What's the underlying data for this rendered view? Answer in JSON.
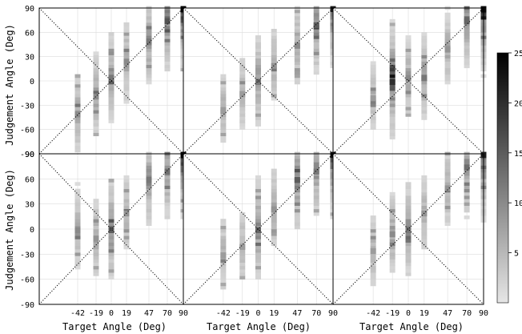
{
  "chart_data": {
    "type": "heatmap",
    "layout": {
      "rows": 2,
      "cols": 3
    },
    "xlabel": "Target Angle (Deg)",
    "ylabel": "Judgement Angle (Deg)",
    "x_ticks": [
      -42,
      -19,
      0,
      19,
      47,
      70,
      90
    ],
    "y_ticks": [
      90,
      60,
      30,
      0,
      -30,
      -60,
      -90
    ],
    "xlim": [
      -90,
      90
    ],
    "ylim": [
      -90,
      90
    ],
    "grid": true,
    "colorbar": {
      "ticks": [
        25,
        20,
        15,
        10,
        5
      ],
      "range": [
        0,
        25
      ],
      "colormap": "grayscale"
    },
    "reference_lines": [
      "y = x",
      "y = -x"
    ],
    "panels": [
      {
        "name": "panel-1",
        "peaks": [
          [
            90,
            90,
            25
          ],
          [
            70,
            75,
            16
          ],
          [
            47,
            50,
            12
          ],
          [
            19,
            25,
            10
          ],
          [
            0,
            5,
            12
          ],
          [
            -19,
            -18,
            10
          ],
          [
            -42,
            -40,
            10
          ]
        ]
      },
      {
        "name": "panel-2",
        "peaks": [
          [
            90,
            90,
            22
          ],
          [
            70,
            70,
            15
          ],
          [
            47,
            45,
            10
          ],
          [
            19,
            20,
            9
          ],
          [
            0,
            0,
            12
          ],
          [
            -19,
            -15,
            8
          ],
          [
            -42,
            -35,
            8
          ]
        ]
      },
      {
        "name": "panel-3",
        "peaks": [
          [
            90,
            90,
            24
          ],
          [
            70,
            75,
            14
          ],
          [
            47,
            40,
            9
          ],
          [
            19,
            5,
            12
          ],
          [
            0,
            5,
            10
          ],
          [
            -19,
            0,
            20
          ],
          [
            -42,
            -20,
            8
          ]
        ]
      },
      {
        "name": "panel-4",
        "peaks": [
          [
            90,
            90,
            25
          ],
          [
            70,
            70,
            13
          ],
          [
            47,
            60,
            12
          ],
          [
            19,
            20,
            9
          ],
          [
            0,
            0,
            15
          ],
          [
            -19,
            -10,
            9
          ],
          [
            -42,
            0,
            10
          ]
        ]
      },
      {
        "name": "panel-5",
        "peaks": [
          [
            90,
            90,
            24
          ],
          [
            70,
            70,
            12
          ],
          [
            47,
            60,
            15
          ],
          [
            19,
            25,
            9
          ],
          [
            0,
            0,
            14
          ],
          [
            -19,
            -20,
            8
          ],
          [
            -42,
            -30,
            8
          ]
        ]
      },
      {
        "name": "panel-6",
        "peaks": [
          [
            90,
            90,
            22
          ],
          [
            70,
            75,
            13
          ],
          [
            47,
            50,
            9
          ],
          [
            19,
            20,
            9
          ],
          [
            0,
            0,
            12
          ],
          [
            -19,
            -5,
            10
          ],
          [
            -42,
            -25,
            8
          ]
        ]
      }
    ]
  }
}
